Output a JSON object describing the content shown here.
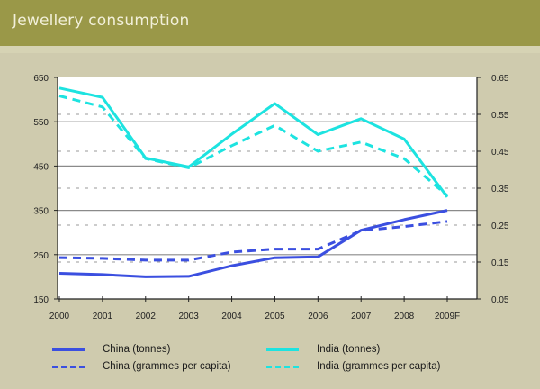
{
  "header": {
    "title": "Jewellery consumption"
  },
  "chart_data": {
    "type": "line",
    "title": "Jewellery consumption",
    "x": [
      "2000",
      "2001",
      "2002",
      "2003",
      "2004",
      "2005",
      "2006",
      "2007",
      "2008",
      "2009F"
    ],
    "y_left": {
      "label": "tonnes",
      "range": [
        150,
        650
      ],
      "ticks": [
        "650",
        "550",
        "450",
        "350",
        "250",
        "150"
      ],
      "tick_values": [
        650,
        550,
        450,
        350,
        250,
        150
      ]
    },
    "y_right": {
      "label": "grammes per capita",
      "range": [
        0.05,
        0.65
      ],
      "ticks": [
        "0.65",
        "0.55",
        "0.45",
        "0.35",
        "0.25",
        "0.15",
        "0.05"
      ],
      "tick_values": [
        0.65,
        0.55,
        0.45,
        0.35,
        0.25,
        0.15,
        0.05
      ]
    },
    "grid": true,
    "legend_position": "bottom",
    "series": [
      {
        "name": "China (tonnes)",
        "axis": "left",
        "style": "solid",
        "color": "#3b4fe0",
        "values": [
          208,
          205,
          200,
          201,
          225,
          243,
          245,
          305,
          329,
          350
        ]
      },
      {
        "name": "China (grammes per capita)",
        "axis": "right",
        "style": "dashed",
        "color": "#3b4fe0",
        "values": [
          0.162,
          0.16,
          0.155,
          0.155,
          0.177,
          0.185,
          0.185,
          0.235,
          0.246,
          0.26
        ]
      },
      {
        "name": "India (tonnes)",
        "axis": "left",
        "style": "solid",
        "color": "#1de3e0",
        "values": [
          626,
          605,
          468,
          448,
          522,
          591,
          521,
          557,
          511,
          380
        ]
      },
      {
        "name": "India (grammes per capita)",
        "axis": "right",
        "style": "dashed",
        "color": "#1de3e0",
        "values": [
          0.6,
          0.57,
          0.43,
          0.405,
          0.465,
          0.52,
          0.45,
          0.475,
          0.43,
          0.33
        ]
      }
    ]
  },
  "legend": {
    "items": [
      {
        "label": "China (tonnes)"
      },
      {
        "label": "China (grammes per capita)"
      },
      {
        "label": "India (tonnes)"
      },
      {
        "label": "India (grammes per capita)"
      }
    ]
  }
}
